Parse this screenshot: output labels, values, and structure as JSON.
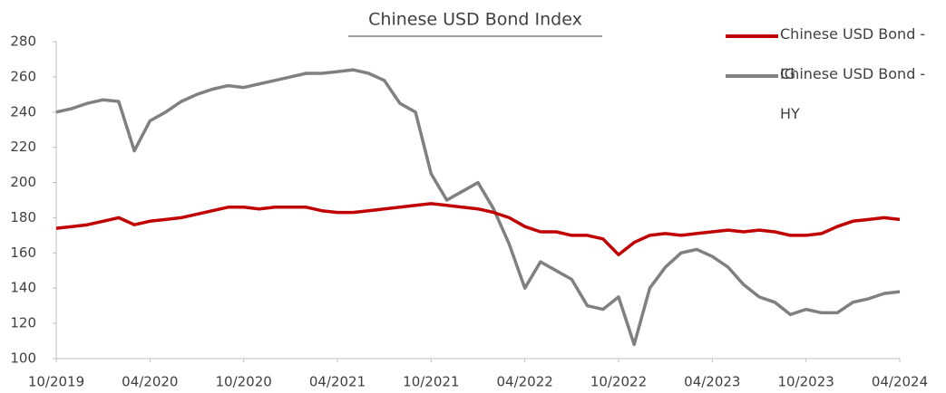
{
  "chart_data": {
    "type": "line",
    "title": "Chinese USD Bond Index",
    "x": [
      "10/2019",
      "11/2019",
      "12/2019",
      "01/2020",
      "02/2020",
      "03/2020",
      "04/2020",
      "05/2020",
      "06/2020",
      "07/2020",
      "08/2020",
      "09/2020",
      "10/2020",
      "11/2020",
      "12/2020",
      "01/2021",
      "02/2021",
      "03/2021",
      "04/2021",
      "05/2021",
      "06/2021",
      "07/2021",
      "08/2021",
      "09/2021",
      "10/2021",
      "11/2021",
      "12/2021",
      "01/2022",
      "02/2022",
      "03/2022",
      "04/2022",
      "05/2022",
      "06/2022",
      "07/2022",
      "08/2022",
      "09/2022",
      "10/2022",
      "11/2022",
      "12/2022",
      "01/2023",
      "02/2023",
      "03/2023",
      "04/2023",
      "05/2023",
      "06/2023",
      "07/2023",
      "08/2023",
      "09/2023",
      "10/2023",
      "11/2023",
      "12/2023",
      "01/2024",
      "02/2024",
      "03/2024",
      "04/2024"
    ],
    "series": [
      {
        "name": "Chinese USD Bond - IG",
        "color": "#c00000",
        "values": [
          174,
          175,
          176,
          178,
          180,
          176,
          178,
          179,
          180,
          182,
          184,
          186,
          186,
          185,
          186,
          186,
          186,
          184,
          183,
          183,
          184,
          185,
          186,
          187,
          188,
          187,
          186,
          185,
          183,
          180,
          175,
          172,
          172,
          170,
          170,
          168,
          159,
          166,
          170,
          171,
          170,
          171,
          172,
          173,
          172,
          173,
          172,
          170,
          170,
          171,
          175,
          178,
          179,
          180,
          179
        ]
      },
      {
        "name": "Chinese USD Bond - HY",
        "color": "#808080",
        "values": [
          240,
          242,
          245,
          247,
          246,
          218,
          235,
          240,
          246,
          250,
          253,
          255,
          254,
          256,
          258,
          260,
          262,
          262,
          263,
          264,
          262,
          258,
          245,
          240,
          205,
          190,
          195,
          200,
          185,
          165,
          140,
          155,
          150,
          145,
          130,
          128,
          135,
          108,
          140,
          152,
          160,
          162,
          158,
          152,
          142,
          135,
          132,
          125,
          128,
          126,
          126,
          132,
          134,
          137,
          138
        ]
      }
    ],
    "xticks": [
      "10/2019",
      "04/2020",
      "10/2020",
      "04/2021",
      "10/2021",
      "04/2022",
      "10/2022",
      "04/2023",
      "10/2023",
      "04/2024"
    ],
    "ylim": [
      100,
      280
    ],
    "yticks": [
      100,
      120,
      140,
      160,
      180,
      200,
      220,
      240,
      260,
      280
    ],
    "legend": "top-right"
  }
}
